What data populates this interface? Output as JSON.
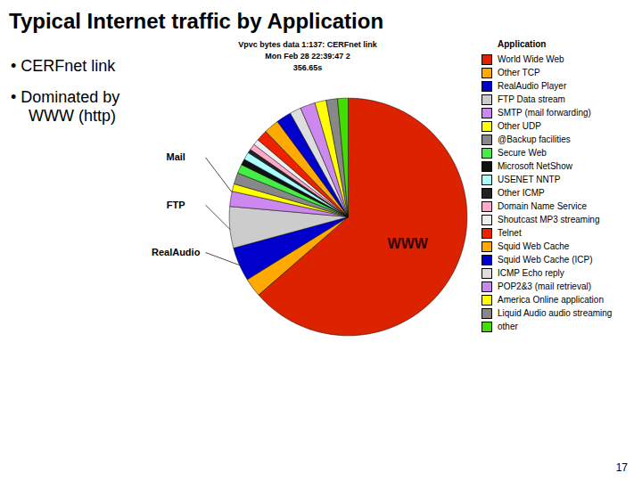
{
  "chart_data": {
    "type": "pie",
    "title": "Typical Internet traffic by Application",
    "subtitle": [
      "Vpvc bytes data 1:137: CERFnet link",
      "Mon Feb 28 22:39:47 2",
      "356.65s"
    ],
    "bullets": [
      [
        "• CERFnet link"
      ],
      [
        "• Dominated by",
        "WWW (http)"
      ]
    ],
    "categories": [
      "World Wide Web",
      "Other TCP",
      "RealAudio Player",
      "FTP Data stream",
      "SMTP (mail forwarding)",
      "Other UDP",
      "@Backup facilities",
      "Secure Web",
      "Microsoft NetShow",
      "USENET NNTP",
      "Other ICMP",
      "Domain Name Service",
      "Shoutcast MP3 streaming",
      "Telnet",
      "Squid Web Cache",
      "Squid Web Cache (ICP)",
      "ICMP Echo reply",
      "POP2&3 (mail retrieval)",
      "America Online application",
      "Liquid Audio audio streaming",
      "other"
    ],
    "values": [
      62.0,
      2.5,
      4.5,
      5.5,
      2.0,
      1.0,
      1.5,
      1.2,
      0.8,
      1.0,
      0.5,
      0.8,
      0.8,
      1.5,
      2.0,
      2.0,
      1.5,
      2.0,
      1.5,
      1.5,
      1.4
    ],
    "colors": [
      "#dd2200",
      "#ffaa00",
      "#0000cc",
      "#cccccc",
      "#cc88ee",
      "#ffff00",
      "#888888",
      "#44ee44",
      "#111111",
      "#aaffff",
      "#222222",
      "#ffaacc",
      "#eeeeee",
      "#ee2200",
      "#ffaa00",
      "#0000cc",
      "#dddddd",
      "#cc88ee",
      "#ffff00",
      "#888888",
      "#44dd00"
    ],
    "annotations": [
      "WWW",
      "Mail",
      "FTP",
      "RealAudio"
    ],
    "legend": "right",
    "legend_title": "Application",
    "footer": "17"
  }
}
